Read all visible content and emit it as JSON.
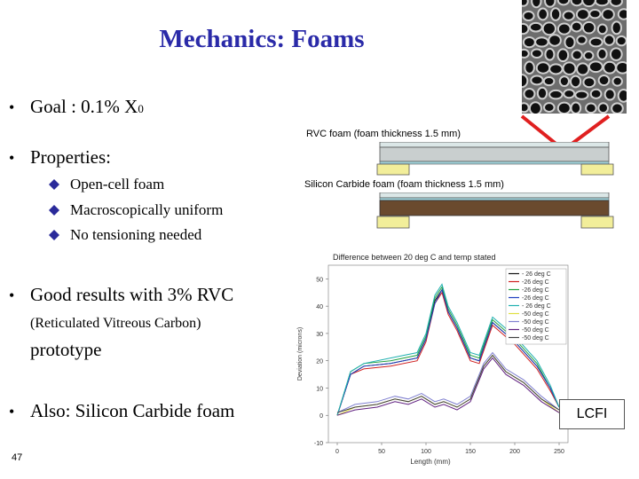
{
  "title": "Mechanics: Foams",
  "bullets": {
    "goal_prefix": "Goal : 0.1% X",
    "goal_sub": "0",
    "properties": "Properties:",
    "sub_items": [
      "Open-cell foam",
      "Macroscopically uniform",
      "No tensioning needed"
    ],
    "good_results": "Good results with 3% RVC",
    "rvc_full": "(Reticulated Vitreous Carbon)",
    "prototype": "prototype",
    "also": "Also: Silicon Carbide foam"
  },
  "page_number": "47",
  "diagram": {
    "rvc_label": "RVC foam (foam thickness 1.5 mm)",
    "sic_label": "Silicon Carbide foam (foam thickness 1.5 mm)"
  },
  "logo": "LCFI",
  "colors": {
    "title": "#2a2aa8",
    "arrow": "#e02020",
    "plate": "#f2ee9a",
    "rvc_foam": "#cfd4d4",
    "sic_foam": "#6a4a2e"
  },
  "chart_data": {
    "type": "line",
    "title": "Difference between 20 deg C and temp stated",
    "xlabel": "Length (mm)",
    "ylabel": "Deviation (microns)",
    "xlim": [
      -10,
      260
    ],
    "ylim": [
      -10,
      55
    ],
    "xticks": [
      0,
      50,
      100,
      150,
      200,
      250
    ],
    "yticks": [
      -10,
      0,
      10,
      20,
      30,
      40,
      50
    ],
    "legend_position": "top-right",
    "series": [
      {
        "name": "- 26 deg C",
        "color": "#111111",
        "x": [
          0,
          15,
          30,
          60,
          90,
          100,
          110,
          118,
          125,
          135,
          150,
          160,
          175,
          200,
          225,
          240,
          250
        ],
        "y": [
          0,
          15,
          18,
          19,
          21,
          28,
          42,
          46,
          38,
          32,
          21,
          20,
          34,
          27,
          18,
          10,
          3
        ]
      },
      {
        "name": "-26 deg C",
        "color": "#d02020",
        "x": [
          0,
          15,
          30,
          60,
          90,
          100,
          110,
          118,
          125,
          135,
          150,
          160,
          175,
          200,
          225,
          240,
          250
        ],
        "y": [
          0,
          15,
          17,
          18,
          20,
          27,
          41,
          45,
          37,
          31,
          20,
          19,
          33,
          26,
          17,
          9,
          3
        ]
      },
      {
        "name": "-26 deg C",
        "color": "#20a040",
        "x": [
          0,
          15,
          30,
          60,
          90,
          100,
          110,
          118,
          125,
          135,
          150,
          160,
          175,
          200,
          225,
          240,
          250
        ],
        "y": [
          0,
          16,
          19,
          20,
          22,
          29,
          43,
          47,
          39,
          33,
          22,
          21,
          35,
          28,
          19,
          10,
          3
        ]
      },
      {
        "name": "-26 deg C",
        "color": "#2040c0",
        "x": [
          0,
          15,
          30,
          60,
          90,
          100,
          110,
          118,
          125,
          135,
          150,
          160,
          175,
          200,
          225,
          240,
          250
        ],
        "y": [
          0,
          15,
          18,
          19,
          21,
          28,
          41,
          46,
          38,
          32,
          21,
          20,
          34,
          27,
          18,
          10,
          3
        ]
      },
      {
        "name": "- 26 deg C",
        "color": "#20b0b0",
        "x": [
          0,
          15,
          30,
          60,
          90,
          100,
          110,
          118,
          125,
          135,
          150,
          160,
          175,
          200,
          225,
          240,
          250
        ],
        "y": [
          0,
          16,
          19,
          21,
          23,
          30,
          44,
          48,
          40,
          34,
          23,
          22,
          36,
          29,
          20,
          11,
          3
        ]
      },
      {
        "name": "-50 deg C",
        "color": "#e0e040",
        "x": [
          0,
          20,
          45,
          65,
          80,
          95,
          110,
          120,
          135,
          150,
          165,
          175,
          190,
          210,
          230,
          250
        ],
        "y": [
          0,
          3,
          4,
          6,
          5,
          7,
          4,
          5,
          3,
          6,
          18,
          22,
          16,
          12,
          6,
          1
        ]
      },
      {
        "name": "-50 deg C",
        "color": "#8080d0",
        "x": [
          0,
          20,
          45,
          65,
          80,
          95,
          110,
          120,
          135,
          150,
          165,
          175,
          190,
          210,
          230,
          250
        ],
        "y": [
          1,
          4,
          5,
          7,
          6,
          8,
          5,
          6,
          4,
          7,
          19,
          23,
          17,
          13,
          7,
          2
        ]
      },
      {
        "name": "-50 deg C",
        "color": "#602080",
        "x": [
          0,
          20,
          45,
          65,
          80,
          95,
          110,
          120,
          135,
          150,
          165,
          175,
          190,
          210,
          230,
          250
        ],
        "y": [
          0,
          2,
          3,
          5,
          4,
          6,
          3,
          4,
          2,
          5,
          17,
          21,
          15,
          11,
          5,
          1
        ]
      },
      {
        "name": "-50 deg C",
        "color": "#404040",
        "x": [
          0,
          20,
          45,
          65,
          80,
          95,
          110,
          120,
          135,
          150,
          165,
          175,
          190,
          210,
          230,
          250
        ],
        "y": [
          1,
          3,
          4,
          6,
          5,
          7,
          4,
          5,
          3,
          6,
          18,
          22,
          16,
          12,
          6,
          2
        ]
      }
    ]
  }
}
